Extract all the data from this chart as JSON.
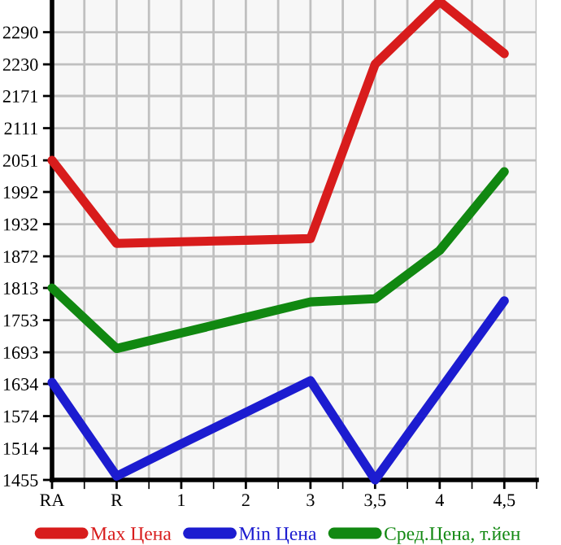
{
  "chart_data": {
    "type": "line",
    "categories": [
      "RA",
      "R",
      "1",
      "2",
      "3",
      "3,5",
      "4",
      "4,5"
    ],
    "series": [
      {
        "name": "Max Цена",
        "color": "#d81c1c",
        "values": [
          2051,
          1896,
          1899,
          1902,
          1905,
          2230,
          2347,
          2250
        ]
      },
      {
        "name": "Min Цена",
        "color": "#1c1cd0",
        "values": [
          1637,
          1462,
          1522,
          1581,
          1640,
          1455,
          1622,
          1789
        ]
      },
      {
        "name": "Сред.Цена, т.йен",
        "color": "#118811",
        "values": [
          1813,
          1700,
          1729,
          1758,
          1787,
          1793,
          1883,
          2030
        ]
      }
    ],
    "ylim": [
      1455,
      2350
    ],
    "yticks": [
      1455,
      1514,
      1574,
      1634,
      1693,
      1753,
      1813,
      1872,
      1932,
      1992,
      2051,
      2111,
      2171,
      2230,
      2290
    ],
    "grid": true,
    "legend": "bottom",
    "marker": "none",
    "line_style": "solid"
  }
}
